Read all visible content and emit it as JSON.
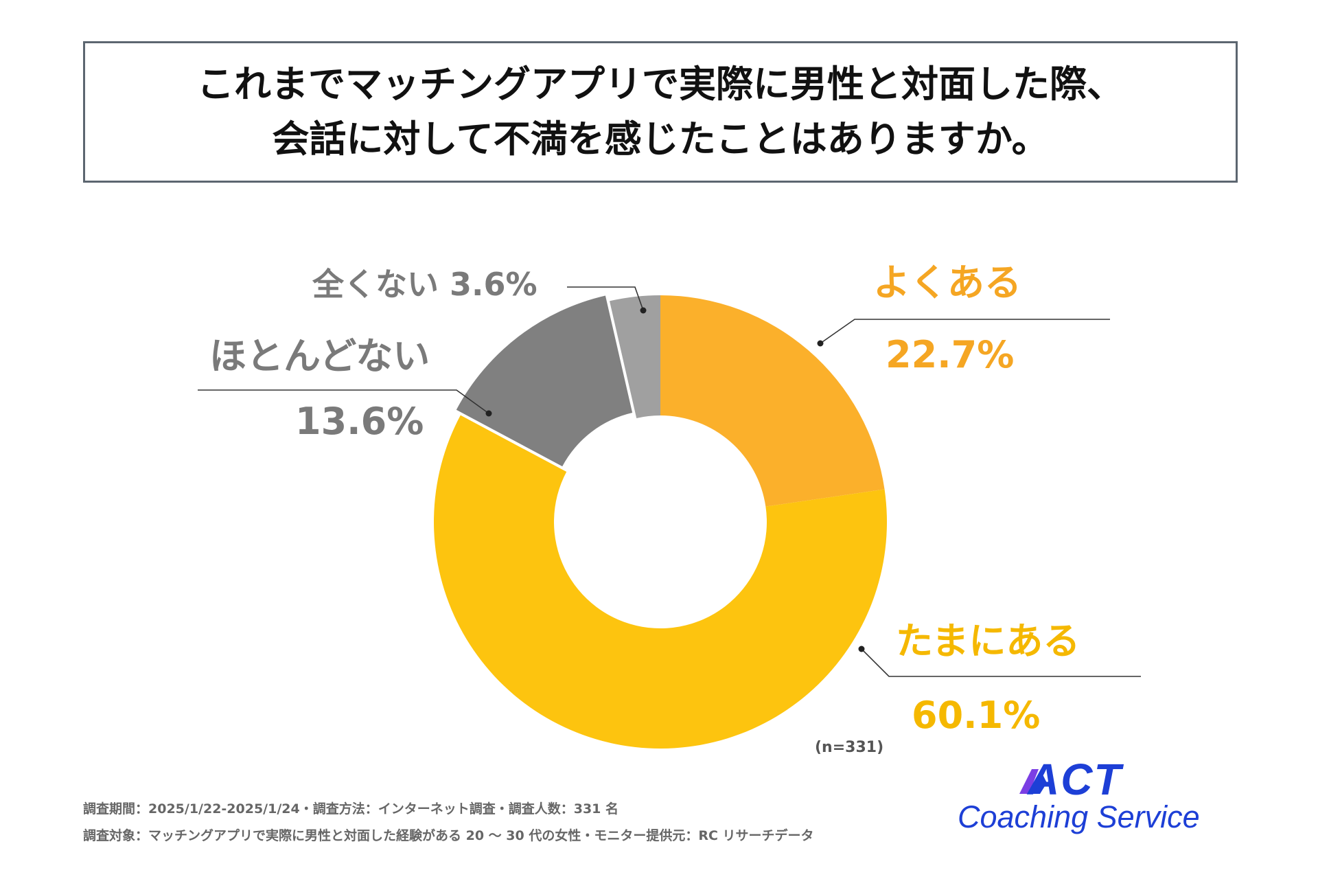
{
  "title": {
    "line1": "これまでマッチングアプリで実際に男性と対面した際、",
    "line2": "会話に対して不満を感じたことはありますか。"
  },
  "chart_data": {
    "type": "pie",
    "variant": "donut",
    "title": "これまでマッチングアプリで実際に男性と対面した際、会話に対して不満を感じたことはありますか。",
    "sample_size_label": "(n=331)",
    "series": [
      {
        "name": "よくある",
        "value_label": "22.7%",
        "value": 22.7,
        "color": "#fbb02b"
      },
      {
        "name": "たまにある",
        "value_label": "60.1%",
        "value": 60.1,
        "color": "#fdc40f"
      },
      {
        "name": "ほとんどない",
        "value_label": "13.6%",
        "value": 13.6,
        "color": "#808080"
      },
      {
        "name": "全くない",
        "value_label": "3.6%",
        "value": 3.6,
        "color": "#a0a0a0"
      }
    ]
  },
  "labels": {
    "yokuaru": "よくある",
    "yokuaru_pct": "22.7%",
    "tamani": "たまにある",
    "tamani_pct": "60.1%",
    "hotondo": "ほとんどない",
    "hotondo_pct": "13.6%",
    "mattaku": "全くない 3.6%",
    "n": "(n=331)"
  },
  "colors": {
    "yokuaru_text": "#f5a623",
    "tamani_text": "#f5b800",
    "gray_text": "#7a7a7a"
  },
  "footnotes": {
    "line1": "調査期間：2025/1/22-2025/1/24・調査方法：インターネット調査・調査人数：331 名",
    "line2": "調査対象：マッチングアプリで実際に男性と対面した経験がある 20 〜 30 代の女性・モニター提供元：RC リサーチデータ"
  },
  "logo": {
    "brand": "ACT",
    "tagline": "Coaching Service"
  }
}
